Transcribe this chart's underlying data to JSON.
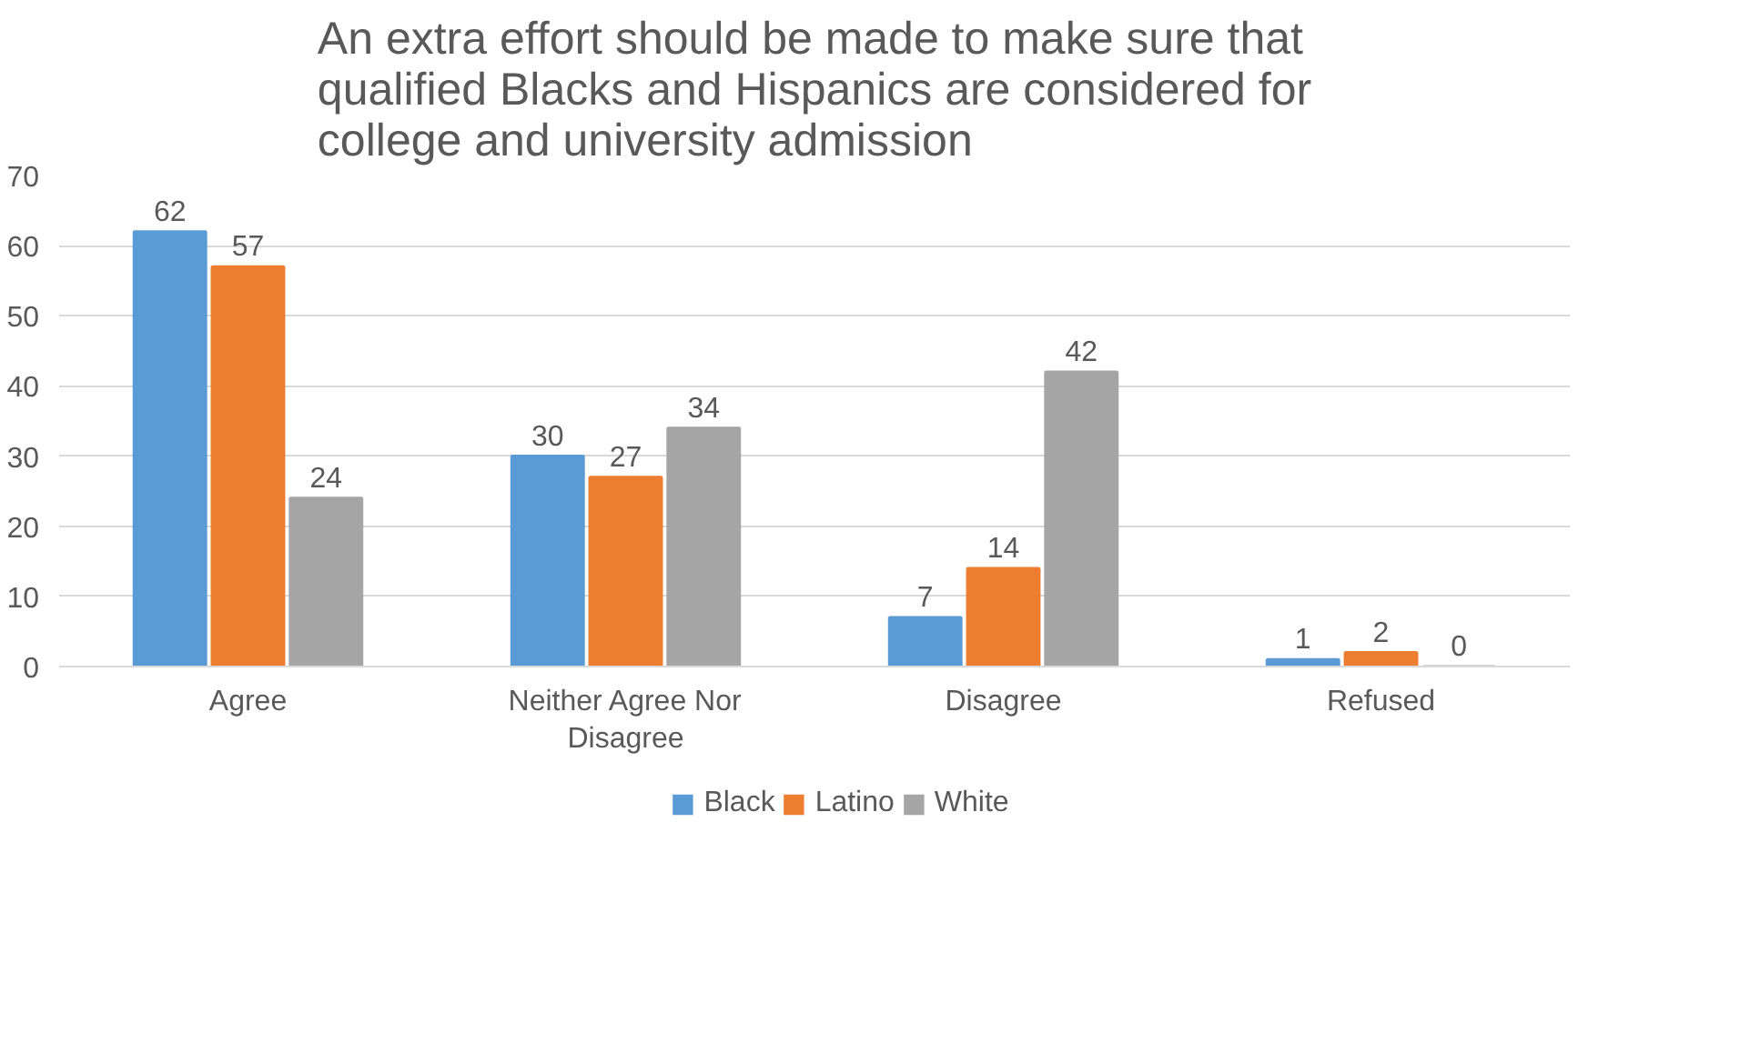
{
  "chart_data": {
    "type": "bar",
    "title": "An extra effort should be made to make sure that qualified Blacks and Hispanics are considered for college and university admission",
    "categories": [
      "Agree",
      "Neither Agree Nor Disagree",
      "Disagree",
      "Refused"
    ],
    "series": [
      {
        "name": "Black",
        "color": "#5b9bd5",
        "values": [
          62,
          30,
          7,
          1
        ]
      },
      {
        "name": "Latino",
        "color": "#ed7d31",
        "values": [
          57,
          27,
          14,
          2
        ]
      },
      {
        "name": "White",
        "color": "#a5a5a5",
        "values": [
          24,
          34,
          42,
          0
        ]
      }
    ],
    "ylim": [
      0,
      70
    ],
    "yticks": [
      0,
      10,
      20,
      30,
      40,
      50,
      60,
      70
    ],
    "grid": "y",
    "legend": "bottom",
    "data_labels": true
  }
}
